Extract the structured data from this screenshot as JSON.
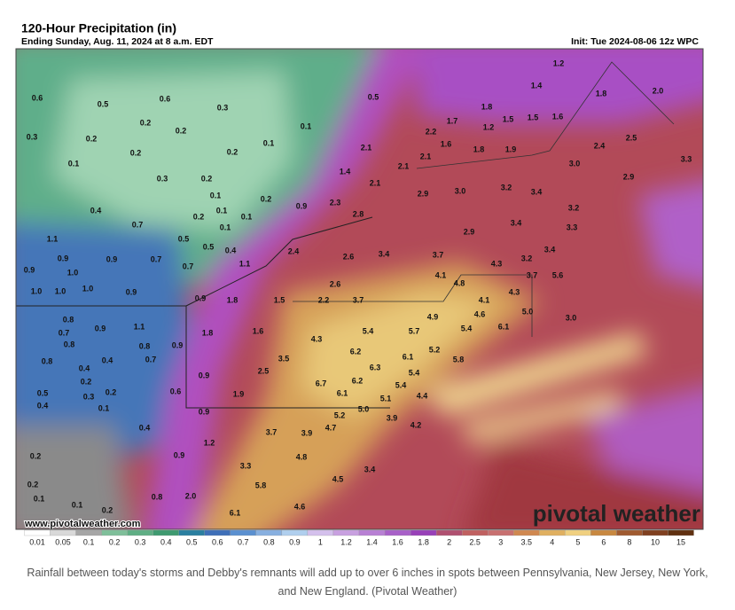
{
  "header": {
    "title": "120-Hour Precipitation (in)",
    "subtitle": "Ending Sunday, Aug. 11, 2024 at 8 a.m. EDT",
    "init": "Init: Tue 2024-08-06 12z WPC"
  },
  "map": {
    "labels": [
      "0.6",
      "0.5",
      "0.6",
      "0.3",
      "0.2",
      "0.2",
      "0.3",
      "0.2",
      "0.2",
      "0.1",
      "0.1",
      "0.2",
      "0.1",
      "0.5",
      "0.3",
      "0.2",
      "0.1",
      "0.2",
      "0.4",
      "0.2",
      "0.1",
      "0.1",
      "0.1",
      "0.9",
      "0.7",
      "0.5",
      "0.5",
      "0.4",
      "1.1",
      "0.9",
      "0.9",
      "0.7",
      "0.7",
      "1.1",
      "0.9",
      "1.0",
      "1.0",
      "1.0",
      "1.0",
      "0.9",
      "0.9",
      "1.8",
      "1.5",
      "2.2",
      "3.7",
      "0.8",
      "0.7",
      "0.9",
      "1.1",
      "0.8",
      "0.8",
      "0.9",
      "0.7",
      "0.4",
      "0.8",
      "0.4",
      "0.2",
      "0.3",
      "0.2",
      "0.1",
      "0.5",
      "0.4",
      "0.6",
      "0.9",
      "1.8",
      "1.6",
      "1.9",
      "2.5",
      "3.5",
      "0.9",
      "0.4",
      "1.2",
      "0.9",
      "0.2",
      "0.2",
      "0.1",
      "0.1",
      "0.2",
      "0.8",
      "2.0",
      "3.3",
      "5.8",
      "6.1",
      "4.6",
      "3.7",
      "3.9",
      "4.8",
      "4.5",
      "4.7",
      "5.2",
      "3.4",
      "5.0",
      "3.9",
      "4.2",
      "4.4",
      "5.1",
      "5.4",
      "5.4",
      "6.1",
      "6.7",
      "6.1",
      "6.2",
      "6.3",
      "6.2",
      "5.4",
      "4.3",
      "4.9",
      "5.7",
      "5.2",
      "5.8",
      "5.4",
      "6.1",
      "4.6",
      "4.1",
      "4.8",
      "4.1",
      "4.3",
      "4.3",
      "3.2",
      "3.7",
      "5.6",
      "3.4",
      "5.0",
      "3.0",
      "2.4",
      "2.6",
      "3.4",
      "3.7",
      "2.6",
      "2.9",
      "3.4",
      "2.3",
      "2.8",
      "1.4",
      "2.1",
      "2.1",
      "2.1",
      "2.2",
      "2.1",
      "2.9",
      "3.0",
      "3.2",
      "3.4",
      "1.6",
      "1.8",
      "1.9",
      "1.7",
      "1.8",
      "1.2",
      "1.5",
      "1.5",
      "1.6",
      "1.2",
      "1.4",
      "1.8",
      "2.0",
      "2.5",
      "2.4",
      "3.0",
      "2.9",
      "3.3",
      "3.2",
      "3.3"
    ],
    "watermark_url": "www.pivotalweather.com",
    "watermark": "pivotal weather"
  },
  "colorbar": {
    "labels": [
      "0.01",
      "0.05",
      "0.1",
      "0.2",
      "0.3",
      "0.4",
      "0.5",
      "0.6",
      "0.7",
      "0.8",
      "0.9",
      "1",
      "1.2",
      "1.4",
      "1.6",
      "1.8",
      "2",
      "2.5",
      "3",
      "3.5",
      "4",
      "5",
      "6",
      "8",
      "10",
      "15"
    ],
    "colors": [
      "#ffffff",
      "#d9d9d9",
      "#a6a6a6",
      "#7fbf9a",
      "#5fae84",
      "#3f9a70",
      "#2a7fa0",
      "#3f6fb8",
      "#5a90d0",
      "#88b0e0",
      "#b0cfee",
      "#d4c0ec",
      "#c8a0e0",
      "#b880d4",
      "#a860c8",
      "#9840b8",
      "#b05070",
      "#c06060",
      "#c87070",
      "#d08850",
      "#e0b060",
      "#f0d080",
      "#c88840",
      "#a05a30",
      "#804020",
      "#603010"
    ]
  },
  "caption": "Rainfall between today's storms and Debby's remnants will add up to over 6 inches in spots between Pennsylvania, New Jersey, New York, and New England. (Pivotal Weather)"
}
